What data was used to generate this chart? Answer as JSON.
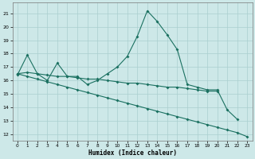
{
  "xlabel": "Humidex (Indice chaleur)",
  "bg_color": "#cde8e8",
  "grid_color": "#aacfcf",
  "line_color": "#1a7060",
  "xlim": [
    -0.5,
    23.5
  ],
  "ylim": [
    11.5,
    21.8
  ],
  "yticks": [
    12,
    13,
    14,
    15,
    16,
    17,
    18,
    19,
    20,
    21
  ],
  "xticks": [
    0,
    1,
    2,
    3,
    4,
    5,
    6,
    7,
    8,
    9,
    10,
    11,
    12,
    13,
    14,
    15,
    16,
    17,
    18,
    19,
    20,
    21,
    22,
    23
  ],
  "line1_x": [
    0,
    1,
    2,
    3,
    4,
    5,
    6,
    7,
    8,
    9,
    10,
    11,
    12,
    13,
    14,
    15,
    16,
    17,
    18,
    19,
    20,
    21,
    22
  ],
  "line1_y": [
    16.4,
    17.9,
    16.5,
    16.0,
    17.3,
    16.3,
    16.3,
    15.7,
    16.0,
    16.5,
    17.0,
    17.8,
    19.3,
    21.2,
    20.4,
    19.4,
    18.3,
    15.7,
    15.5,
    15.3,
    15.3,
    13.8,
    13.1
  ],
  "line2_x": [
    0,
    1,
    2,
    3,
    4,
    5,
    6,
    7,
    8,
    9,
    10,
    11,
    12,
    13,
    14,
    15,
    16,
    17,
    18,
    19,
    20
  ],
  "line2_y": [
    16.5,
    16.6,
    16.5,
    16.4,
    16.3,
    16.3,
    16.2,
    16.1,
    16.1,
    16.0,
    15.9,
    15.8,
    15.8,
    15.7,
    15.6,
    15.5,
    15.5,
    15.4,
    15.3,
    15.2,
    15.2
  ],
  "line3_x": [
    0,
    1,
    2,
    3,
    4,
    5,
    6,
    7,
    8,
    9,
    10,
    11,
    12,
    13,
    14,
    15,
    16,
    17,
    18,
    19,
    20,
    21,
    22,
    23
  ],
  "line3_y": [
    16.5,
    16.3,
    16.1,
    15.9,
    15.7,
    15.5,
    15.3,
    15.1,
    14.9,
    14.7,
    14.5,
    14.3,
    14.1,
    13.9,
    13.7,
    13.5,
    13.3,
    13.1,
    12.9,
    12.7,
    12.5,
    12.3,
    12.1,
    11.8
  ]
}
